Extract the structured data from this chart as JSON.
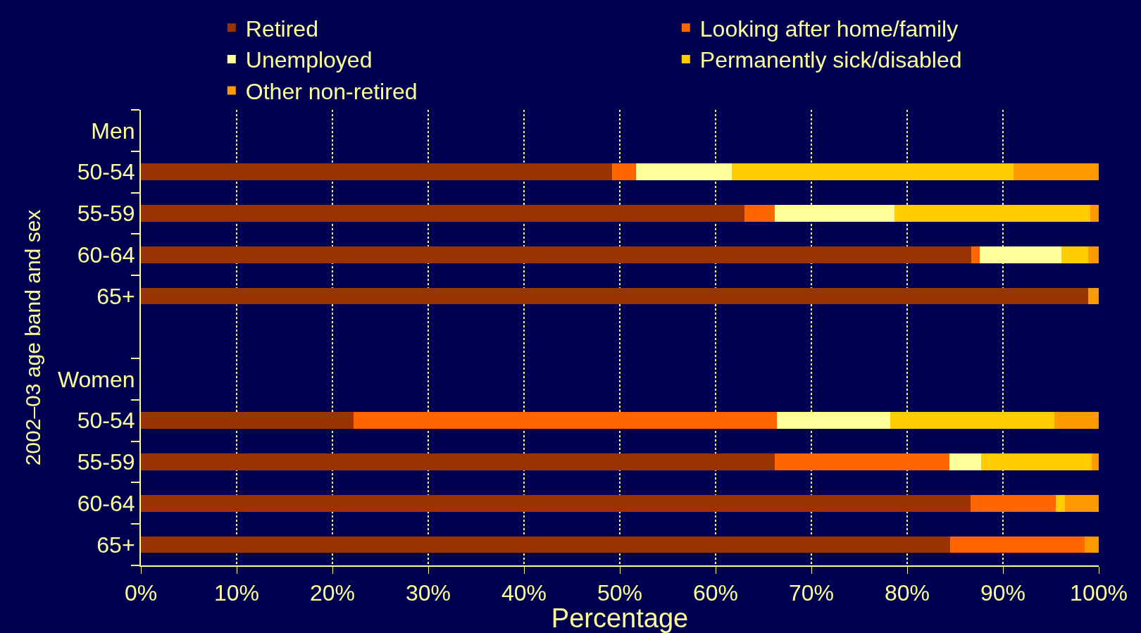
{
  "chart_data": {
    "type": "bar",
    "orientation": "horizontal",
    "stacked": true,
    "categories": [
      "Men",
      "50-54",
      "55-59",
      "60-64",
      "65+",
      null,
      "Women",
      "50-54",
      "55-59",
      "60-64",
      "65+"
    ],
    "series": [
      {
        "name": "Retired",
        "color": "#993300",
        "values": [
          null,
          49.2,
          63.0,
          86.7,
          98.9,
          null,
          null,
          22.2,
          66.2,
          86.6,
          84.5
        ]
      },
      {
        "name": "Looking after home/family",
        "color": "#ff6600",
        "values": [
          null,
          2.5,
          3.2,
          0.9,
          0,
          null,
          null,
          44.2,
          18.2,
          8.9,
          14.0
        ]
      },
      {
        "name": "Unemployed",
        "color": "#ffff99",
        "values": [
          null,
          10.0,
          12.5,
          8.5,
          0,
          null,
          null,
          11.8,
          3.3,
          0,
          0
        ]
      },
      {
        "name": "Permanently sick/disabled",
        "color": "#ffcc00",
        "values": [
          null,
          29.4,
          20.4,
          2.8,
          0,
          null,
          null,
          17.2,
          11.6,
          1.0,
          0
        ]
      },
      {
        "name": "Other non-retired",
        "color": "#ff9900",
        "values": [
          null,
          8.9,
          0.9,
          1.1,
          1.1,
          null,
          null,
          4.6,
          0.7,
          3.5,
          1.5
        ]
      }
    ],
    "xlabel": "Percentage",
    "ylabel": "2002–03 age band and sex",
    "xlim": [
      0,
      100
    ],
    "xticks": [
      {
        "value": 0,
        "label": "0%"
      },
      {
        "value": 10,
        "label": "10%"
      },
      {
        "value": 20,
        "label": "20%"
      },
      {
        "value": 30,
        "label": "30%"
      },
      {
        "value": 40,
        "label": "40%"
      },
      {
        "value": 50,
        "label": "50%"
      },
      {
        "value": 60,
        "label": "60%"
      },
      {
        "value": 70,
        "label": "70%"
      },
      {
        "value": 80,
        "label": "80%"
      },
      {
        "value": 90,
        "label": "90%"
      },
      {
        "value": 100,
        "label": "100%"
      }
    ],
    "grid": "x",
    "legend": "top"
  }
}
